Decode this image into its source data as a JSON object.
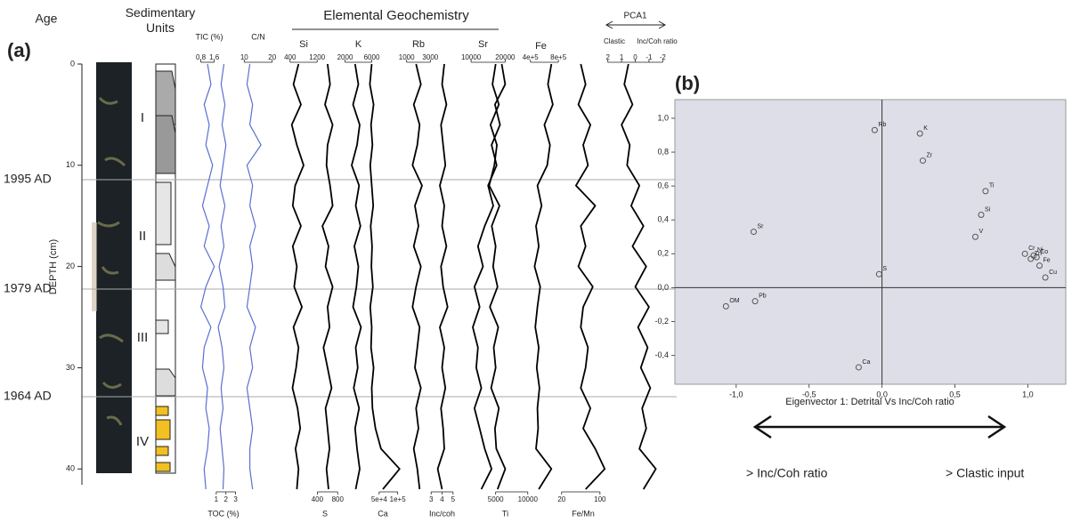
{
  "chart_data": [
    {
      "type": "depth-profile",
      "panel_label": "(a)",
      "title": "Elemental Geochemistry",
      "age_header": "Age",
      "units_header": "Sedimentary Units",
      "ylabel": "DEPTH (cm)",
      "ylim": [
        0,
        42
      ],
      "yticks": [
        0,
        10,
        20,
        30,
        40
      ],
      "ages": [
        "1995 AD",
        "1979 AD",
        "1964 AD"
      ],
      "units": [
        "I",
        "II",
        "III",
        "IV"
      ],
      "pca_ends": [
        "Clastic",
        "Inc/Coh ratio"
      ],
      "depth": [
        0,
        2,
        4,
        6,
        8,
        10,
        12,
        14,
        16,
        18,
        20,
        22,
        24,
        26,
        28,
        30,
        32,
        34,
        36,
        38,
        40,
        42
      ],
      "series": [
        {
          "name": "TIC (%)",
          "color": "#5b6fd0",
          "xlim": [
            0.4,
            2.2
          ],
          "xticks": [
            0.8,
            1.6
          ],
          "values": [
            1.2,
            1.4,
            1.0,
            1.3,
            1.1,
            1.5,
            1.2,
            0.9,
            1.3,
            1.0,
            1.6,
            1.1,
            0.8,
            1.4,
            1.0,
            0.9,
            1.2,
            1.1,
            1.3,
            1.2,
            1.0,
            1.1
          ]
        },
        {
          "name": "TOC (%)",
          "color": "#5b6fd0",
          "xlim": [
            0,
            3.5
          ],
          "xticks": [
            1,
            2,
            3
          ],
          "values": [
            1.8,
            1.5,
            1.9,
            1.6,
            2.0,
            1.7,
            1.4,
            1.9,
            1.5,
            1.8,
            1.3,
            1.7,
            1.9,
            1.2,
            1.6,
            1.8,
            1.5,
            1.7,
            1.4,
            1.6,
            1.8,
            1.7
          ]
        },
        {
          "name": "C/N",
          "color": "#5b6fd0",
          "xlim": [
            8,
            22
          ],
          "xticks": [
            10,
            20
          ],
          "values": [
            12,
            11,
            13,
            12,
            16,
            11,
            13,
            12,
            14,
            12,
            13,
            12,
            11,
            14,
            12,
            13,
            11,
            12,
            13,
            12,
            12,
            13
          ]
        },
        {
          "name": "Si",
          "color": "#000000",
          "xlim": [
            300,
            1300
          ],
          "xticks": [
            400,
            1200
          ],
          "values": [
            650,
            500,
            720,
            450,
            600,
            800,
            550,
            480,
            720,
            480,
            600,
            520,
            750,
            500,
            650,
            580,
            470,
            620,
            700,
            560,
            650,
            600
          ]
        },
        {
          "name": "S",
          "color": "#000000",
          "xlim": [
            200,
            900
          ],
          "xticks": [
            400,
            800
          ],
          "values": [
            600,
            650,
            550,
            700,
            600,
            580,
            650,
            700,
            500,
            620,
            560,
            700,
            600,
            640,
            520,
            600,
            680,
            560,
            600,
            640,
            580,
            620
          ]
        },
        {
          "name": "K",
          "color": "#000000",
          "xlim": [
            1000,
            7000
          ],
          "xticks": [
            2000,
            6000
          ],
          "values": [
            3500,
            4000,
            3200,
            4200,
            3800,
            3000,
            4100,
            3600,
            4300,
            3400,
            4000,
            3700,
            3200,
            4400,
            3600,
            3900,
            3300,
            4100,
            3500,
            3800,
            4200,
            3600
          ]
        },
        {
          "name": "Ca",
          "color": "#000000",
          "xlim": [
            0,
            120000
          ],
          "xticks": [
            {
              "value": 50000,
              "label": "5e+4"
            },
            {
              "value": 100000,
              "label": "1e+5"
            }
          ],
          "values": [
            30000,
            25000,
            35000,
            28000,
            32000,
            26000,
            30000,
            34000,
            27000,
            31000,
            29000,
            33000,
            26000,
            30000,
            28000,
            35000,
            30000,
            32000,
            40000,
            55000,
            105000,
            60000
          ]
        },
        {
          "name": "Rb",
          "color": "#000000",
          "xlim": [
            500,
            3500
          ],
          "xticks": [
            1000,
            3000
          ],
          "values": [
            1800,
            2200,
            1600,
            2100,
            1900,
            1500,
            2300,
            1700,
            2000,
            1600,
            2200,
            1800,
            1500,
            2100,
            1900,
            1700,
            2200,
            1800,
            2000,
            1600,
            1900,
            2100
          ]
        },
        {
          "name": "Inc/coh",
          "color": "#000000",
          "xlim": [
            2.5,
            5.5
          ],
          "xticks": [
            3,
            4,
            5
          ],
          "values": [
            4.2,
            4.0,
            4.4,
            3.9,
            4.1,
            4.3,
            3.8,
            4.2,
            4.0,
            4.4,
            3.9,
            4.1,
            4.5,
            3.8,
            4.2,
            4.0,
            4.3,
            3.9,
            4.1,
            4.2,
            3.6,
            4.0
          ]
        },
        {
          "name": "Sr",
          "color": "#000000",
          "xlim": [
            5000,
            22000
          ],
          "xticks": [
            10000,
            20000
          ],
          "values": [
            19000,
            20000,
            17000,
            18500,
            16000,
            17500,
            15000,
            16500,
            14000,
            12000,
            13500,
            11000,
            12500,
            10500,
            12000,
            11500,
            13000,
            11000,
            12500,
            14000,
            16000,
            13000
          ]
        },
        {
          "name": "Ti",
          "color": "#000000",
          "xlim": [
            2000,
            11000
          ],
          "xticks": [
            5000,
            10000
          ],
          "values": [
            5000,
            4500,
            5500,
            4200,
            5200,
            4800,
            4000,
            5600,
            4400,
            5000,
            4600,
            5300,
            4100,
            5400,
            4700,
            5000,
            4300,
            5500,
            4900,
            5100,
            6500,
            5300
          ]
        },
        {
          "name": "Fe",
          "color": "#000000",
          "xlim": [
            200000,
            900000
          ],
          "xticks": [
            {
              "value": 400000,
              "label": "4e+5"
            },
            {
              "value": 800000,
              "label": "8e+5"
            }
          ],
          "values": [
            700000,
            650000,
            720000,
            600000,
            680000,
            640000,
            500000,
            560000,
            480000,
            520000,
            460000,
            540000,
            500000,
            470000,
            520000,
            490000,
            530000,
            500000,
            510000,
            480000,
            700000,
            520000
          ]
        },
        {
          "name": "Fe/Mn",
          "color": "#000000",
          "xlim": [
            0,
            130
          ],
          "xticks": [
            20,
            100
          ],
          "values": [
            60,
            70,
            55,
            80,
            65,
            75,
            50,
            90,
            60,
            70,
            55,
            85,
            65,
            60,
            75,
            70,
            60,
            80,
            65,
            90,
            110,
            70
          ]
        },
        {
          "name": "PCA1",
          "color": "#000000",
          "xlim": [
            2.5,
            -2.5
          ],
          "xticks": [
            2,
            1,
            0,
            -1,
            -2
          ],
          "values": [
            0.5,
            0.8,
            0.2,
            1.0,
            0.4,
            0.6,
            -0.3,
            0.3,
            -0.6,
            0.2,
            -0.8,
            0.0,
            -1.0,
            -0.2,
            -0.9,
            -0.4,
            -1.1,
            -0.5,
            -0.8,
            -0.3,
            -1.5,
            -0.6
          ]
        }
      ]
    },
    {
      "type": "scatter",
      "panel_label": "(b)",
      "xlabel": "Eigenvector 1: Detrital Vs Inc/Coh ratio",
      "arrow_labels": [
        "> Inc/Coh ratio",
        "> Clastic input"
      ],
      "background": "#dedee8",
      "color": "#555555",
      "xlim": [
        -1.42,
        1.26
      ],
      "ylim": [
        -0.57,
        1.11
      ],
      "xticks": [
        {
          "value": -1,
          "label": "-1,0"
        },
        {
          "value": -0.5,
          "label": "-0,5"
        },
        {
          "value": 0,
          "label": "0,0"
        },
        {
          "value": 0.5,
          "label": "0,5"
        },
        {
          "value": 1,
          "label": "1,0"
        }
      ],
      "yticks": [
        {
          "value": -0.4,
          "label": "-0,4"
        },
        {
          "value": -0.2,
          "label": "-0,2"
        },
        {
          "value": 0,
          "label": "0,0"
        },
        {
          "value": 0.2,
          "label": "0,2"
        },
        {
          "value": 0.4,
          "label": "0,4"
        },
        {
          "value": 0.6,
          "label": "0,6"
        },
        {
          "value": 0.8,
          "label": "0,8"
        },
        {
          "value": 1,
          "label": "1,0"
        }
      ],
      "labels": [
        "Rb",
        "K",
        "Zr",
        "Ti",
        "Si",
        "V",
        "Sr",
        "Cr",
        "Ni",
        "Zn",
        "Co",
        "Fe",
        "Cu",
        "S",
        "OM",
        "Pb",
        "Ca"
      ],
      "x": [
        -0.05,
        0.26,
        0.28,
        0.71,
        0.68,
        0.64,
        -0.88,
        0.98,
        1.04,
        1.02,
        1.06,
        1.08,
        1.12,
        -0.02,
        -1.07,
        -0.87,
        -0.16
      ],
      "values": [
        0.93,
        0.91,
        0.75,
        0.57,
        0.43,
        0.3,
        0.33,
        0.2,
        0.19,
        0.17,
        0.18,
        0.13,
        0.06,
        0.08,
        -0.11,
        -0.08,
        -0.47
      ]
    }
  ]
}
